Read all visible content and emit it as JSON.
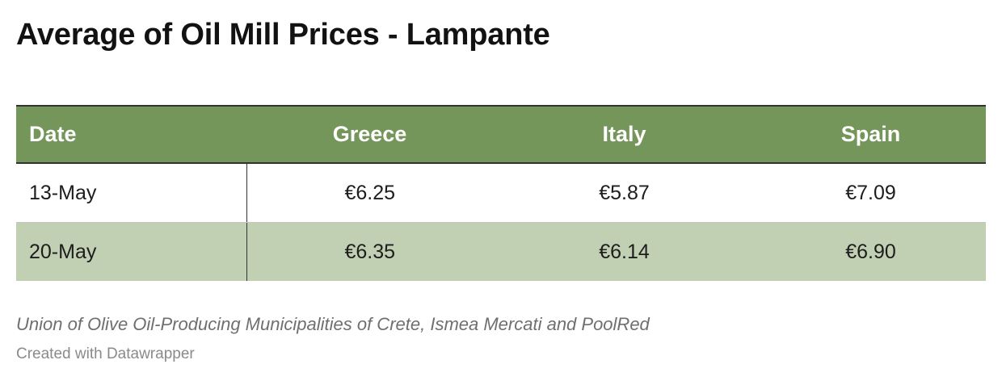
{
  "chart_data": {
    "type": "table",
    "title": "Average of Oil Mill Prices - Lampante",
    "columns": [
      "Date",
      "Greece",
      "Italy",
      "Spain"
    ],
    "rows": [
      [
        "13-May",
        "€6.25",
        "€5.87",
        "€7.09"
      ],
      [
        "20-May",
        "€6.35",
        "€6.14",
        "€6.90"
      ]
    ],
    "series": [
      {
        "name": "Greece",
        "values": [
          6.25,
          6.35
        ]
      },
      {
        "name": "Italy",
        "values": [
          5.87,
          6.14
        ]
      },
      {
        "name": "Spain",
        "values": [
          7.09,
          6.9
        ]
      }
    ],
    "categories": [
      "13-May",
      "20-May"
    ],
    "unit": "€",
    "source": "Union of Olive Oil-Producing Municipalities of Crete, Ismea Mercati and PoolRed",
    "credit": "Created with Datawrapper"
  },
  "colors": {
    "header_bg": "#75965a",
    "header_text": "#ffffff",
    "alt_row_bg": "#c1d0b3"
  }
}
